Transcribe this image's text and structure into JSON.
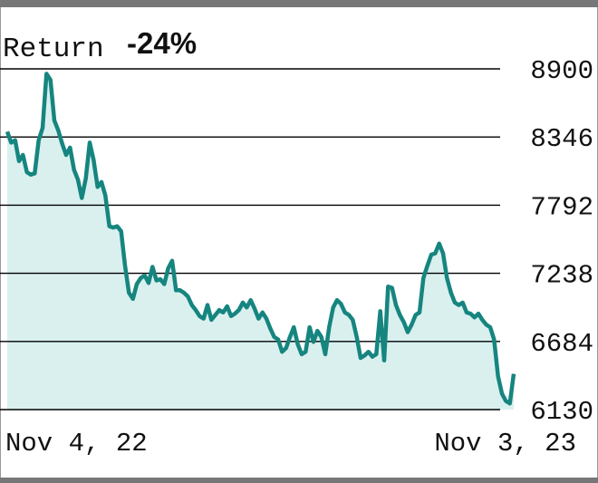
{
  "return_label": "Return",
  "return_value": "-24%",
  "colors": {
    "frame": "#777777",
    "line": "#16857f",
    "fill": "#d9f0ef",
    "grid": "#000000",
    "text": "#111111"
  },
  "chart_data": {
    "type": "area",
    "title": "",
    "xlabel": "",
    "ylabel": "",
    "x_range": [
      "Nov 4, 22",
      "Nov 3, 23"
    ],
    "x_tick_labels": [
      "Nov 4, 22",
      "Nov 3, 23"
    ],
    "ylim": [
      6130,
      8900
    ],
    "y_ticks": [
      "8900",
      "8346",
      "7792",
      "7238",
      "6684",
      "6130"
    ],
    "y_axis_position": "right",
    "grid": true,
    "series": [
      {
        "values": [
          8390,
          8300,
          8320,
          8150,
          8200,
          8060,
          8040,
          8050,
          8320,
          8420,
          8860,
          8810,
          8480,
          8400,
          8290,
          8200,
          8260,
          8080,
          8000,
          7850,
          8010,
          8300,
          8160,
          7940,
          7980,
          7870,
          7620,
          7610,
          7620,
          7580,
          7300,
          7080,
          7030,
          7150,
          7200,
          7220,
          7160,
          7290,
          7180,
          7190,
          7150,
          7280,
          7340,
          7100,
          7100,
          7080,
          7050,
          6980,
          6940,
          6890,
          6870,
          6980,
          6860,
          6900,
          6940,
          6920,
          6970,
          6890,
          6910,
          6940,
          7000,
          6960,
          7020,
          6950,
          6870,
          6920,
          6870,
          6790,
          6720,
          6700,
          6600,
          6630,
          6720,
          6800,
          6660,
          6580,
          6600,
          6800,
          6680,
          6770,
          6720,
          6580,
          6800,
          6960,
          7020,
          6990,
          6920,
          6900,
          6860,
          6720,
          6550,
          6570,
          6600,
          6560,
          6580,
          6930,
          6530,
          7130,
          7120,
          6980,
          6900,
          6840,
          6760,
          6820,
          6900,
          6920,
          7200,
          7300,
          7390,
          7400,
          7480,
          7400,
          7200,
          7080,
          7000,
          6980,
          7000,
          6920,
          6910,
          6880,
          6910,
          6860,
          6820,
          6800,
          6700,
          6400,
          6260,
          6200,
          6180,
          6420
        ]
      }
    ]
  }
}
